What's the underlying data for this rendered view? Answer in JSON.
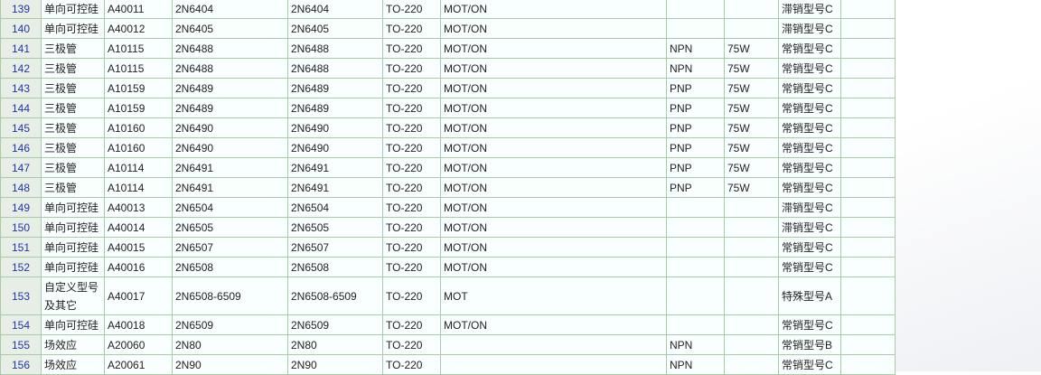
{
  "rows": [
    [
      "139",
      "单向可控硅",
      "A40011",
      "2N6404",
      "2N6404",
      "TO-220",
      "MOT/ON",
      "",
      "",
      "滞销型号C",
      ""
    ],
    [
      "140",
      "单向可控硅",
      "A40012",
      "2N6405",
      "2N6405",
      "TO-220",
      "MOT/ON",
      "",
      "",
      "滞销型号C",
      ""
    ],
    [
      "141",
      "三极管",
      "A10115",
      "2N6488",
      "2N6488",
      "TO-220",
      "MOT/ON",
      "NPN",
      "75W",
      "常销型号C",
      ""
    ],
    [
      "142",
      "三极管",
      "A10115",
      "2N6488",
      "2N6488",
      "TO-220",
      "MOT/ON",
      "NPN",
      "75W",
      "常销型号C",
      ""
    ],
    [
      "143",
      "三极管",
      "A10159",
      "2N6489",
      "2N6489",
      "TO-220",
      "MOT/ON",
      "PNP",
      "75W",
      "常销型号C",
      ""
    ],
    [
      "144",
      "三极管",
      "A10159",
      "2N6489",
      "2N6489",
      "TO-220",
      "MOT/ON",
      "PNP",
      "75W",
      "常销型号C",
      ""
    ],
    [
      "145",
      "三极管",
      "A10160",
      "2N6490",
      "2N6490",
      "TO-220",
      "MOT/ON",
      "PNP",
      "75W",
      "常销型号C",
      ""
    ],
    [
      "146",
      "三极管",
      "A10160",
      "2N6490",
      "2N6490",
      "TO-220",
      "MOT/ON",
      "PNP",
      "75W",
      "常销型号C",
      ""
    ],
    [
      "147",
      "三极管",
      "A10114",
      "2N6491",
      "2N6491",
      "TO-220",
      "MOT/ON",
      "PNP",
      "75W",
      "常销型号C",
      ""
    ],
    [
      "148",
      "三极管",
      "A10114",
      "2N6491",
      "2N6491",
      "TO-220",
      "MOT/ON",
      "PNP",
      "75W",
      "常销型号C",
      ""
    ],
    [
      "149",
      "单向可控硅",
      "A40013",
      "2N6504",
      "2N6504",
      "TO-220",
      "MOT/ON",
      "",
      "",
      "滞销型号C",
      ""
    ],
    [
      "150",
      "单向可控硅",
      "A40014",
      "2N6505",
      "2N6505",
      "TO-220",
      "MOT/ON",
      "",
      "",
      "滞销型号C",
      ""
    ],
    [
      "151",
      "单向可控硅",
      "A40015",
      "2N6507",
      "2N6507",
      "TO-220",
      "MOT/ON",
      "",
      "",
      "常销型号C",
      ""
    ],
    [
      "152",
      "单向可控硅",
      "A40016",
      "2N6508",
      "2N6508",
      "TO-220",
      "MOT/ON",
      "",
      "",
      "常销型号C",
      ""
    ],
    [
      "153",
      "自定义型号及其它",
      "A40017",
      "2N6508-6509",
      "2N6508-6509",
      "TO-220",
      "MOT",
      "",
      "",
      "特殊型号A",
      ""
    ],
    [
      "154",
      "单向可控硅",
      "A40018",
      "2N6509",
      "2N6509",
      "TO-220",
      "MOT/ON",
      "",
      "",
      "常销型号C",
      ""
    ],
    [
      "155",
      "场效应",
      "A20060",
      "2N80",
      "2N80",
      "TO-220",
      "",
      "NPN",
      "",
      "常销型号B",
      ""
    ],
    [
      "156",
      "场效应",
      "A20061",
      "2N90",
      "2N90",
      "TO-220",
      "",
      "NPN",
      "",
      "常销型号C",
      ""
    ]
  ]
}
